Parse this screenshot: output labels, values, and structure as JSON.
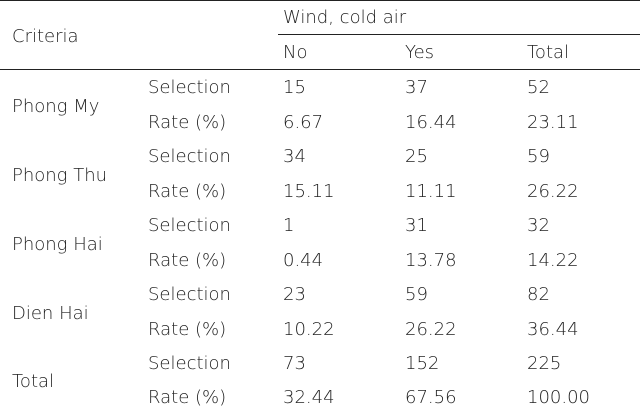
{
  "table": {
    "stub_header": "Criteria",
    "group_header": "Wind, cold air",
    "columns": [
      "No",
      "Yes",
      "Total"
    ],
    "rows": [
      {
        "location": "Phong My",
        "lines": [
          {
            "metric": "Selection",
            "values": [
              "15",
              "37",
              "52"
            ]
          },
          {
            "metric": "Rate (%)",
            "values": [
              "6.67",
              "16.44",
              "23.11"
            ]
          }
        ]
      },
      {
        "location": "Phong Thu",
        "lines": [
          {
            "metric": "Selection",
            "values": [
              "34",
              "25",
              "59"
            ]
          },
          {
            "metric": "Rate (%)",
            "values": [
              "15.11",
              "11.11",
              "26.22"
            ]
          }
        ]
      },
      {
        "location": "Phong Hai",
        "lines": [
          {
            "metric": "Selection",
            "values": [
              "1",
              "31",
              "32"
            ]
          },
          {
            "metric": "Rate (%)",
            "values": [
              "0.44",
              "13.78",
              "14.22"
            ]
          }
        ]
      },
      {
        "location": "Dien Hai",
        "lines": [
          {
            "metric": "Selection",
            "values": [
              "23",
              "59",
              "82"
            ]
          },
          {
            "metric": "Rate (%)",
            "values": [
              "10.22",
              "26.22",
              "36.44"
            ]
          }
        ]
      },
      {
        "location": "Total",
        "lines": [
          {
            "metric": "Selection",
            "values": [
              "73",
              "152",
              "225"
            ]
          },
          {
            "metric": "Rate (%)",
            "values": [
              "32.44",
              "67.56",
              "100.00"
            ]
          }
        ]
      }
    ]
  }
}
